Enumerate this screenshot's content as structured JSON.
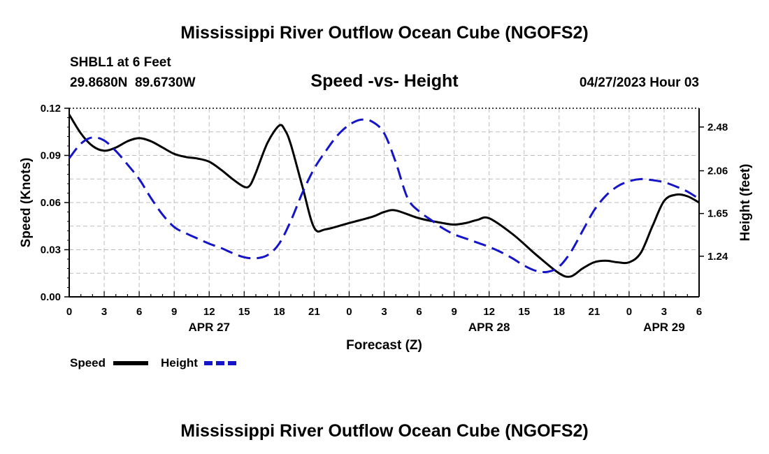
{
  "title": "Mississippi River Outflow Ocean Cube (NGOFS2)",
  "footer_title": "Mississippi River Outflow Ocean Cube (NGOFS2)",
  "station": "SHBL1 at 6 Feet",
  "coords": "29.8680N  89.6730W",
  "subtitle": "Speed -vs- Height",
  "timestamp": "04/27/2023 Hour 03",
  "chart_data": {
    "type": "line",
    "title": "Speed -vs- Height",
    "xlabel": "Forecast (Z)",
    "ylabel": "Speed (Knots)",
    "y2label": "Height (feet)",
    "x_hours_range": [
      0,
      54
    ],
    "x_ticks": [
      {
        "h": 0,
        "label": "0"
      },
      {
        "h": 3,
        "label": "3"
      },
      {
        "h": 6,
        "label": "6"
      },
      {
        "h": 9,
        "label": "9"
      },
      {
        "h": 12,
        "label": "12"
      },
      {
        "h": 15,
        "label": "15"
      },
      {
        "h": 18,
        "label": "18"
      },
      {
        "h": 21,
        "label": "21"
      },
      {
        "h": 24,
        "label": "0"
      },
      {
        "h": 27,
        "label": "3"
      },
      {
        "h": 30,
        "label": "6"
      },
      {
        "h": 33,
        "label": "9"
      },
      {
        "h": 36,
        "label": "12"
      },
      {
        "h": 39,
        "label": "15"
      },
      {
        "h": 42,
        "label": "18"
      },
      {
        "h": 45,
        "label": "21"
      },
      {
        "h": 48,
        "label": "0"
      },
      {
        "h": 51,
        "label": "3"
      },
      {
        "h": 54,
        "label": "6"
      }
    ],
    "date_labels": [
      {
        "h": 12,
        "label": "APR 27"
      },
      {
        "h": 36,
        "label": "APR 28"
      },
      {
        "h": 51,
        "label": "APR 29"
      }
    ],
    "ylim": [
      0,
      0.12
    ],
    "y_ticks": [
      "0.00",
      "0.03",
      "0.06",
      "0.09",
      "0.12"
    ],
    "y2lim": [
      0.85,
      2.66
    ],
    "y2_ticks": [
      "1.24",
      "1.65",
      "2.06",
      "2.48"
    ],
    "grid": true,
    "series": [
      {
        "name": "Speed",
        "color": "#000000",
        "dash": "solid",
        "axis": "left",
        "x": [
          0,
          1,
          2,
          3,
          4,
          5,
          6,
          7,
          8,
          9,
          10,
          11,
          12,
          13,
          14,
          15,
          15.5,
          16,
          17,
          18,
          18.5,
          19,
          20,
          21,
          22,
          24,
          26,
          27,
          28,
          30,
          32,
          33,
          34,
          35,
          36,
          38,
          40,
          42,
          43,
          44,
          45,
          46,
          47,
          48,
          49,
          50,
          51,
          52,
          53,
          54
        ],
        "values": [
          0.116,
          0.104,
          0.096,
          0.093,
          0.095,
          0.099,
          0.101,
          0.099,
          0.095,
          0.091,
          0.089,
          0.088,
          0.086,
          0.081,
          0.075,
          0.07,
          0.071,
          0.079,
          0.098,
          0.109,
          0.106,
          0.097,
          0.07,
          0.044,
          0.043,
          0.047,
          0.051,
          0.054,
          0.055,
          0.05,
          0.047,
          0.046,
          0.047,
          0.049,
          0.05,
          0.04,
          0.027,
          0.015,
          0.013,
          0.018,
          0.022,
          0.023,
          0.022,
          0.022,
          0.028,
          0.045,
          0.061,
          0.065,
          0.064,
          0.06
        ]
      },
      {
        "name": "Height",
        "color": "#1414c8",
        "dash": "dashed",
        "axis": "right",
        "x": [
          0,
          1,
          2,
          3,
          4,
          5,
          6,
          7,
          8,
          9,
          10,
          11,
          12,
          13,
          14,
          15,
          16,
          17,
          18,
          19,
          20,
          21,
          22,
          23,
          24,
          25,
          26,
          27,
          28,
          29,
          30,
          31,
          32,
          33,
          34,
          35,
          36,
          37,
          38,
          39,
          40,
          41,
          42,
          43,
          44,
          45,
          46,
          47,
          48,
          49,
          50,
          51,
          52,
          53,
          54
        ],
        "values": [
          2.18,
          2.32,
          2.38,
          2.35,
          2.25,
          2.12,
          1.98,
          1.8,
          1.64,
          1.52,
          1.46,
          1.41,
          1.36,
          1.32,
          1.27,
          1.23,
          1.22,
          1.25,
          1.36,
          1.58,
          1.85,
          2.08,
          2.25,
          2.4,
          2.5,
          2.55,
          2.53,
          2.42,
          2.14,
          1.8,
          1.67,
          1.59,
          1.51,
          1.45,
          1.41,
          1.37,
          1.33,
          1.28,
          1.22,
          1.15,
          1.1,
          1.09,
          1.14,
          1.28,
          1.48,
          1.68,
          1.82,
          1.91,
          1.96,
          1.98,
          1.97,
          1.95,
          1.91,
          1.86,
          1.79
        ]
      }
    ],
    "legend": [
      {
        "label": "Speed",
        "color": "#000000"
      },
      {
        "label": "Height",
        "color": "#1414c8"
      }
    ],
    "legend_position": "bottom-left"
  }
}
